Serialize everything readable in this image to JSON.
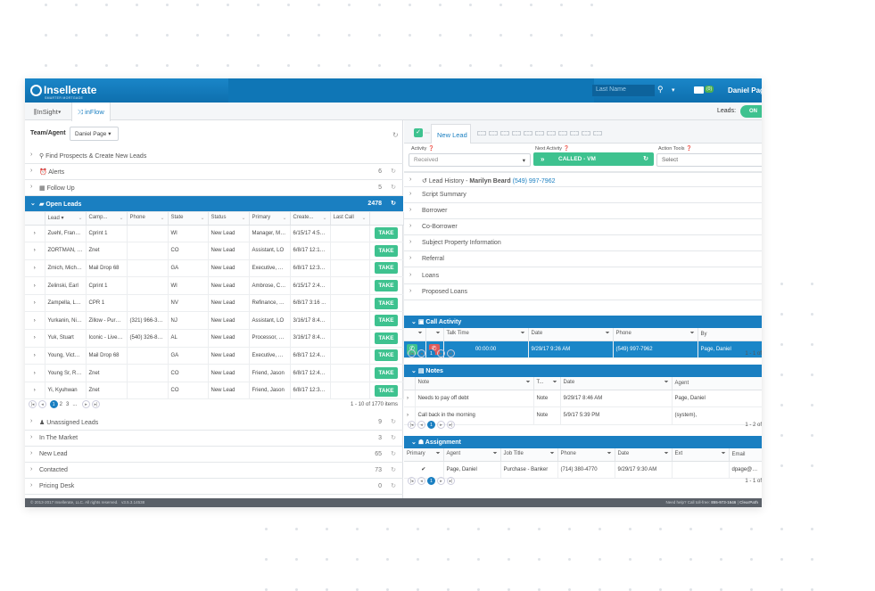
{
  "brand": {
    "name": "Insellerate",
    "tagline": "SMARTER MORTGAGE"
  },
  "topbar": {
    "search_placeholder": "Last Name",
    "mail_count": "(0)",
    "user": "Daniel Page"
  },
  "tabs": [
    {
      "label": "InSight",
      "icon": "bar-chart-icon"
    },
    {
      "label": "inFlow",
      "icon": "shuffle-icon"
    }
  ],
  "leads_toggle": {
    "label": "Leads:",
    "state": "ON"
  },
  "left": {
    "team_label": "Team/Agent",
    "team_value": "Daniel Page",
    "top_sections": [
      {
        "label": "Find Prospects & Create New Leads",
        "count": ""
      },
      {
        "label": "Alerts",
        "count": "6"
      },
      {
        "label": "Follow Up",
        "count": "5"
      }
    ],
    "open_leads": {
      "label": "Open Leads",
      "count": "2478"
    },
    "columns": [
      "Lead",
      "Camp...",
      "Phone",
      "State",
      "Status",
      "Primary",
      "Create...",
      "Last Call"
    ],
    "take_label": "TAKE",
    "rows": [
      {
        "lead": "Zuehl, Franklin",
        "camp": "Cprint 1",
        "phone": "",
        "state": "WI",
        "status": "New Lead",
        "primary": "Manager, Mar...",
        "created": "6/15/17 4:56 ..."
      },
      {
        "lead": "ZORTMAN, R...",
        "camp": "Znet",
        "phone": "",
        "state": "CO",
        "status": "New Lead",
        "primary": "Assistant, LO",
        "created": "6/8/17 12:18 ..."
      },
      {
        "lead": "Zmich, Michael",
        "camp": "Mail Drop 68",
        "phone": "",
        "state": "GA",
        "status": "New Lead",
        "primary": "Executive, Ac...",
        "created": "6/8/17 12:32 ..."
      },
      {
        "lead": "Zelinski, Earl",
        "camp": "Cprint 1",
        "phone": "",
        "state": "WI",
        "status": "New Lead",
        "primary": "Ambrose, Curtis",
        "created": "6/15/17 2:47 ..."
      },
      {
        "lead": "Zampella, Lois",
        "camp": "CPR 1",
        "phone": "",
        "state": "NV",
        "status": "New Lead",
        "primary": "Refinance, CSR",
        "created": "6/8/17 3:16 ..."
      },
      {
        "lead": "Yurkanin, Nikki",
        "camp": "Zillow - Purch...",
        "phone": "(321) 966-3411",
        "state": "NJ",
        "status": "New Lead",
        "primary": "Assistant, LO",
        "created": "3/16/17 8:47 ..."
      },
      {
        "lead": "Yuk, Stuart",
        "camp": "Iconic - Live T...",
        "phone": "(540) 326-8600",
        "state": "AL",
        "status": "New Lead",
        "primary": "Processor, Mary",
        "created": "3/16/17 8:47 ..."
      },
      {
        "lead": "Young, Victoria",
        "camp": "Mail Drop 68",
        "phone": "",
        "state": "GA",
        "status": "New Lead",
        "primary": "Executive, Ac...",
        "created": "6/8/17 12:44 ..."
      },
      {
        "lead": "Young Sr, Ra...",
        "camp": "Znet",
        "phone": "",
        "state": "CO",
        "status": "New Lead",
        "primary": "Friend, Jason",
        "created": "6/8/17 12:40 ..."
      },
      {
        "lead": "Yi, Kyuhwan",
        "camp": "Znet",
        "phone": "",
        "state": "CO",
        "status": "New Lead",
        "primary": "Friend, Jason",
        "created": "6/8/17 12:38 ..."
      }
    ],
    "pager": {
      "pages": [
        "1",
        "2",
        "3",
        "..."
      ],
      "summary": "1 - 10 of 1770 items"
    },
    "bottom_sections": [
      {
        "label": "Unassigned Leads",
        "count": "9"
      },
      {
        "label": "In The Market",
        "count": "3"
      },
      {
        "label": "New Lead",
        "count": "65"
      },
      {
        "label": "Contacted",
        "count": "73"
      },
      {
        "label": "Pricing Desk",
        "count": "0"
      }
    ]
  },
  "right": {
    "tab_label": "New Lead",
    "activity": {
      "label": "Activity",
      "value": "Received"
    },
    "next_activity": {
      "label": "Next Activity",
      "value": "CALLED - VM"
    },
    "action_tools": {
      "label": "Action Tools",
      "value": "Select"
    },
    "lead_history": {
      "label": "Lead History -",
      "name": "Marilyn Beard",
      "phone": "(549) 997-7962"
    },
    "sections": [
      "Script Summary",
      "Borrower",
      "Co-Borrower",
      "Subject Property Information",
      "Referral",
      "Loans",
      "Proposed Loans"
    ],
    "call_activity": {
      "title": "Call Activity",
      "columns": [
        "Talk Time",
        "Date",
        "Phone",
        "By"
      ],
      "row": {
        "talk_time": "00:00:00",
        "date": "9/29/17 9:26 AM",
        "phone": "(549) 997-7962",
        "by": "Page, Daniel"
      },
      "summary": "1 - 1 of"
    },
    "notes": {
      "title": "Notes",
      "columns": [
        "Note",
        "T...",
        "Date",
        "Agent"
      ],
      "rows": [
        {
          "note": "Needs to pay off debt",
          "type": "Note",
          "date": "9/29/17 8:46 AM",
          "agent": "Page, Daniel"
        },
        {
          "note": "Call back in the morning",
          "type": "Note",
          "date": "5/9/17 5:39 PM",
          "agent": "(system),"
        }
      ],
      "summary": "1 - 2 of"
    },
    "assignment": {
      "title": "Assignment",
      "columns": [
        "Primary",
        "Agent",
        "Job Title",
        "Phone",
        "Date",
        "Ext",
        "Email"
      ],
      "row": {
        "primary": "✔",
        "agent": "Page, Daniel",
        "job_title": "Purchase - Banker",
        "phone": "(714) 380-4770",
        "date": "9/29/17 9:30 AM",
        "ext": "",
        "email": "dpage@clearp"
      },
      "summary": "1 - 1 of"
    }
  },
  "footer": {
    "copyright": "© 2013-2017 Insellerate, LLC. All rights reserved.",
    "version": "v3.5.3.14538",
    "help": "Need help? Call toll-free:",
    "help_phone": "855-973-1646",
    "brand_short": "ClearPath"
  }
}
